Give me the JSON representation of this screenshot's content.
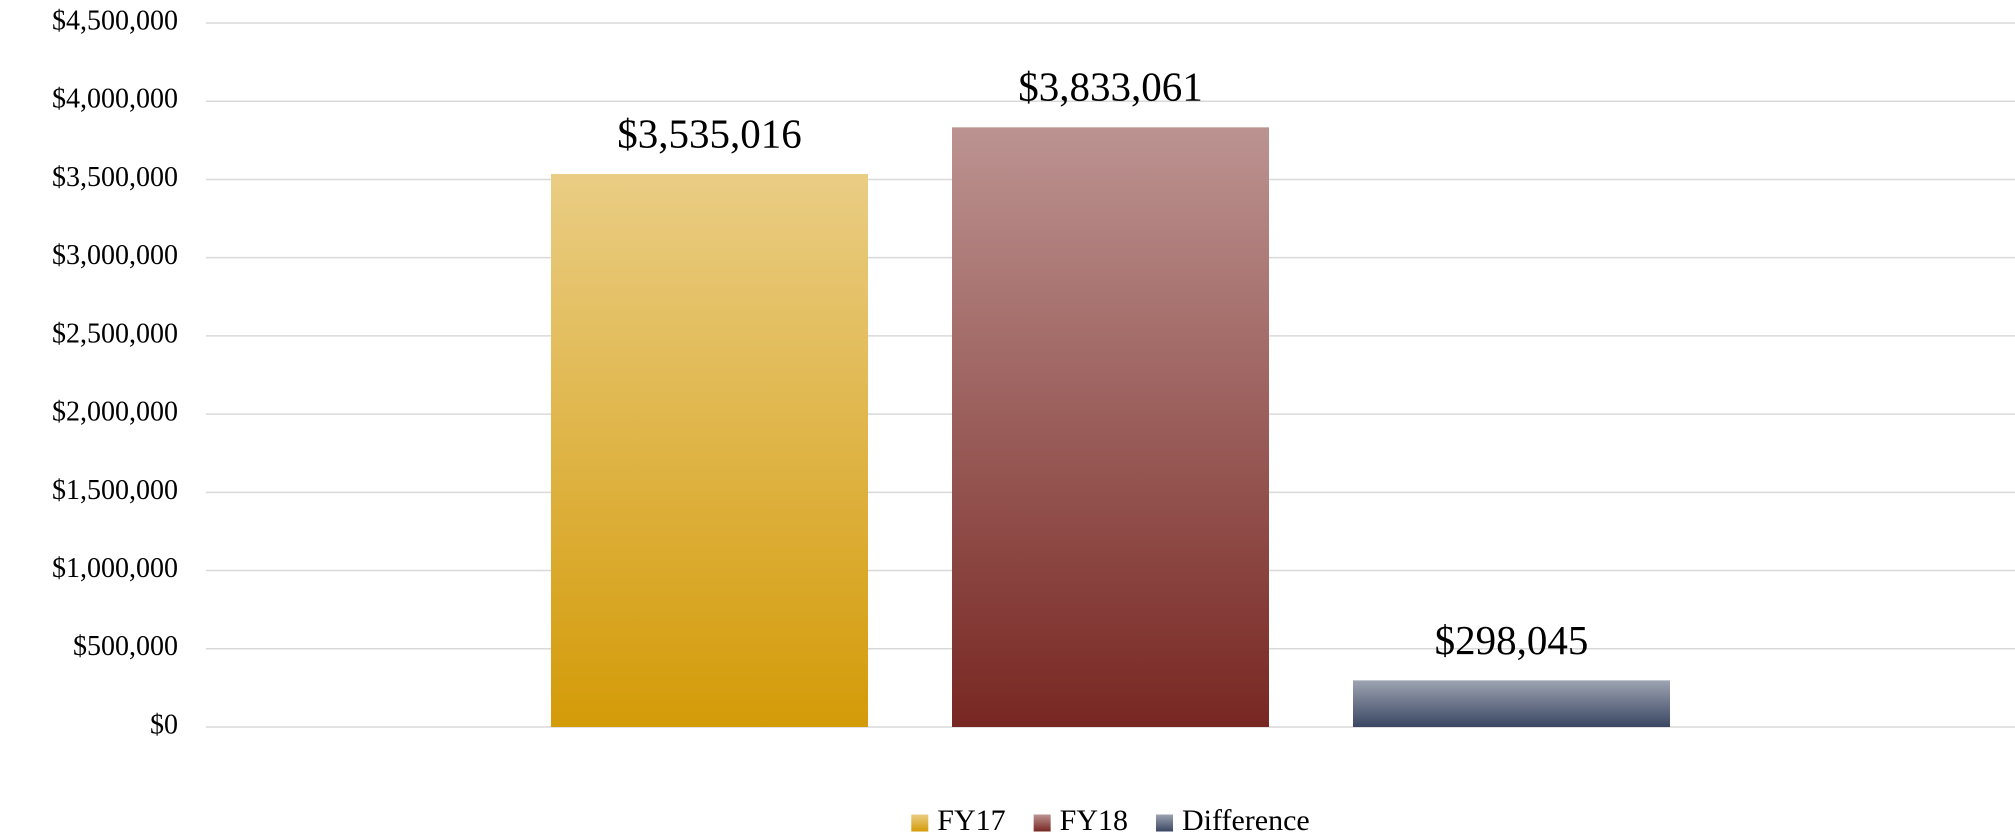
{
  "chart_data": {
    "type": "bar",
    "categories": [
      null
    ],
    "series": [
      {
        "name": "FY17",
        "color": "#d49b08",
        "values": [
          3535016
        ],
        "value_labels": [
          "$3,535,016"
        ]
      },
      {
        "name": "FY18",
        "color": "#782722",
        "values": [
          3833061
        ],
        "value_labels": [
          "$3,833,061"
        ]
      },
      {
        "name": "Difference",
        "color": "#3a4663",
        "values": [
          298045
        ],
        "value_labels": [
          "$298,045"
        ]
      }
    ],
    "ylim": [
      0,
      4500000
    ],
    "yticks": [
      {
        "value": 0,
        "label": "$0"
      },
      {
        "value": 500000,
        "label": "$500,000"
      },
      {
        "value": 1000000,
        "label": "$1,000,000"
      },
      {
        "value": 1500000,
        "label": "$1,500,000"
      },
      {
        "value": 2000000,
        "label": "$2,000,000"
      },
      {
        "value": 2500000,
        "label": "$2,500,000"
      },
      {
        "value": 3000000,
        "label": "$3,000,000"
      },
      {
        "value": 3500000,
        "label": "$3,500,000"
      },
      {
        "value": 4000000,
        "label": "$4,000,000"
      },
      {
        "value": 4500000,
        "label": "$4,500,000"
      }
    ],
    "grid": true,
    "legend": "bottom"
  }
}
